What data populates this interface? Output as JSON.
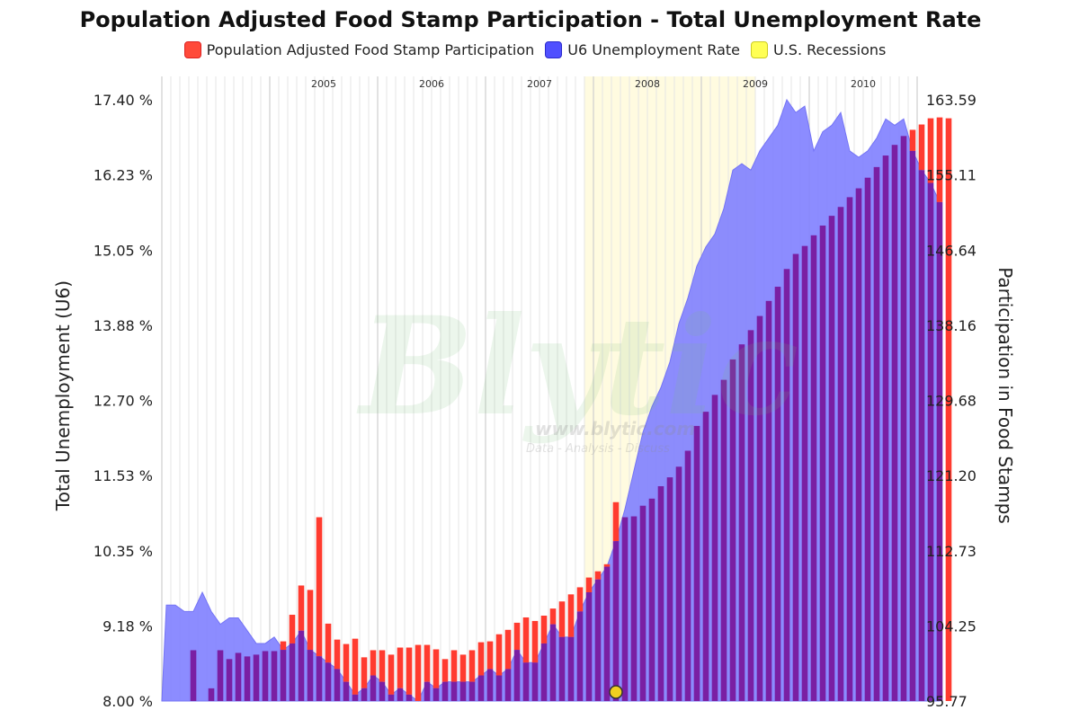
{
  "title": "Population Adjusted Food Stamp Participation - Total Unemployment Rate",
  "legend": [
    {
      "label": "Population Adjusted Food Stamp Participation",
      "color": "#ff3b2f"
    },
    {
      "label": "U6 Unemployment Rate",
      "color": "#4b4bff"
    },
    {
      "label": "U.S. Recessions",
      "color": "#ffff66"
    }
  ],
  "watermark": {
    "brand": "Blytic",
    "url": "www.blytic.com",
    "tagline": "Data - Analysis - Discuss"
  },
  "colors": {
    "food_stamp": "#ff3b2f",
    "u6_fill": "#8080ff",
    "overlap": "#7a1fa3",
    "recession": "#fffbe0",
    "grid": "#e4e4e4"
  },
  "chart_data": {
    "type": "bar",
    "title": "Population Adjusted Food Stamp Participation - Total Unemployment Rate",
    "ylabel_left": "Total Unemployment (U6)",
    "ylabel_right": "Participation in Food Stamps",
    "left_ticks": [
      "17.40 %",
      "16.23 %",
      "15.05 %",
      "13.88 %",
      "12.70 %",
      "11.53 %",
      "10.35 %",
      "9.18 %",
      "8.00 %"
    ],
    "right_ticks": [
      "163.59",
      "155.11",
      "146.64",
      "138.16",
      "129.68",
      "121.20",
      "112.73",
      "104.25",
      "95.77"
    ],
    "ylim_left": [
      8.0,
      17.4
    ],
    "ylim_right": [
      95.77,
      163.59
    ],
    "year_labels": [
      "2005",
      "2006",
      "2007",
      "2008",
      "2009",
      "2010"
    ],
    "x_start": "2004-01",
    "x_end": "2010-12",
    "recession": {
      "start": "2007-12",
      "end": "2009-06"
    },
    "series": [
      {
        "name": "U6 Unemployment Rate",
        "type": "area",
        "axis": "left",
        "start": "2004-01",
        "values": [
          9.5,
          9.5,
          9.4,
          9.4,
          9.7,
          9.4,
          9.2,
          9.3,
          9.3,
          9.1,
          8.9,
          8.9,
          9.0,
          8.8,
          8.9,
          9.1,
          8.8,
          8.7,
          8.6,
          8.5,
          8.3,
          8.1,
          8.2,
          8.4,
          8.3,
          8.1,
          8.2,
          8.1,
          8.0,
          8.3,
          8.2,
          8.3,
          8.3,
          8.3,
          8.3,
          8.4,
          8.5,
          8.4,
          8.5,
          8.8,
          8.6,
          8.6,
          8.9,
          9.2,
          9.0,
          9.0,
          9.4,
          9.7,
          9.9,
          10.1,
          10.5,
          11.0,
          11.6,
          12.2,
          12.6,
          12.9,
          13.3,
          13.9,
          14.3,
          14.8,
          15.1,
          15.3,
          15.7,
          16.3,
          16.4,
          16.3,
          16.6,
          16.8,
          17.0,
          17.4,
          17.2,
          17.3,
          16.6,
          16.9,
          17.0,
          17.2,
          16.6,
          16.5,
          16.6,
          16.8,
          17.1,
          17.0,
          17.1,
          16.6,
          16.3,
          16.1,
          15.8
        ]
      },
      {
        "name": "Population Adjusted Food Stamp Participation",
        "type": "bar",
        "axis": "right",
        "start": "2004-04",
        "values": [
          101.5,
          95.77,
          97.2,
          101.5,
          100.5,
          101.2,
          100.8,
          101.0,
          101.4,
          101.4,
          102.5,
          105.5,
          108.8,
          108.3,
          116.5,
          104.5,
          102.7,
          102.2,
          102.8,
          100.7,
          101.5,
          101.5,
          101.0,
          101.8,
          101.8,
          102.1,
          102.1,
          101.6,
          100.5,
          101.5,
          101.0,
          101.5,
          102.4,
          102.5,
          103.3,
          103.8,
          104.6,
          105.2,
          104.8,
          105.4,
          106.2,
          107.0,
          107.8,
          108.6,
          109.7,
          110.4,
          111.2,
          118.2,
          116.5,
          116.6,
          117.8,
          118.6,
          120.0,
          121.0,
          122.2,
          124.0,
          126.8,
          128.4,
          130.3,
          132.0,
          134.3,
          136.0,
          137.6,
          139.2,
          140.9,
          142.5,
          144.5,
          146.2,
          147.1,
          148.3,
          149.4,
          150.5,
          151.5,
          152.6,
          153.6,
          154.8,
          156.0,
          157.3,
          158.5,
          159.5,
          160.2,
          160.8,
          161.5,
          161.6,
          161.5
        ]
      }
    ]
  }
}
